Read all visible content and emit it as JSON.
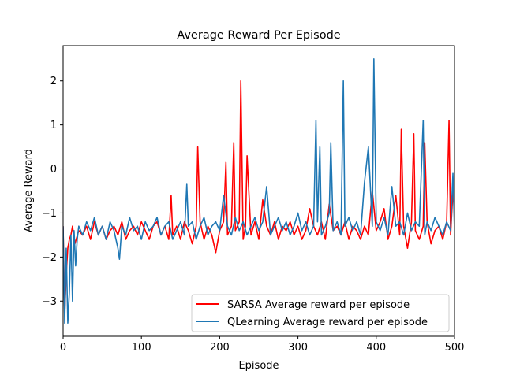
{
  "chart_data": {
    "type": "line",
    "title": "Average Reward Per Episode",
    "xlabel": "Episode",
    "ylabel": "Average Reward",
    "xlim": [
      0,
      500
    ],
    "ylim": [
      -3.8,
      2.8
    ],
    "xticks": [
      0,
      100,
      200,
      300,
      400,
      500
    ],
    "yticks": [
      -3,
      -2,
      -1,
      0,
      1,
      2
    ],
    "grid": false,
    "legend_position": "lower-right",
    "series": [
      {
        "name": "SARSA Average reward per episode",
        "color": "#ff0000",
        "x": [
          0,
          2,
          4,
          6,
          8,
          10,
          12,
          15,
          20,
          25,
          30,
          35,
          40,
          45,
          50,
          55,
          60,
          65,
          70,
          75,
          80,
          85,
          90,
          95,
          100,
          105,
          110,
          115,
          120,
          125,
          130,
          135,
          138,
          140,
          145,
          150,
          155,
          160,
          165,
          170,
          172,
          175,
          180,
          185,
          190,
          195,
          200,
          205,
          208,
          210,
          215,
          218,
          220,
          225,
          227,
          230,
          233,
          235,
          240,
          245,
          250,
          255,
          260,
          265,
          270,
          275,
          280,
          285,
          290,
          295,
          300,
          305,
          310,
          315,
          320,
          325,
          330,
          335,
          340,
          345,
          350,
          355,
          360,
          365,
          370,
          375,
          380,
          385,
          390,
          395,
          400,
          405,
          410,
          415,
          420,
          425,
          430,
          432,
          435,
          440,
          445,
          448,
          450,
          455,
          460,
          462,
          465,
          470,
          475,
          480,
          485,
          490,
          493,
          495,
          498,
          500
        ],
        "y": [
          -1.3,
          -3.3,
          -2.4,
          -1.8,
          -1.6,
          -1.5,
          -1.3,
          -1.7,
          -1.4,
          -1.5,
          -1.3,
          -1.6,
          -1.2,
          -1.5,
          -1.3,
          -1.6,
          -1.4,
          -1.3,
          -1.5,
          -1.2,
          -1.6,
          -1.4,
          -1.3,
          -1.5,
          -1.2,
          -1.4,
          -1.6,
          -1.3,
          -1.2,
          -1.5,
          -1.3,
          -1.6,
          -0.6,
          -1.5,
          -1.3,
          -1.6,
          -1.2,
          -1.4,
          -1.7,
          -1.3,
          0.5,
          -1.2,
          -1.6,
          -1.3,
          -1.5,
          -1.9,
          -1.4,
          -1.2,
          0.15,
          -1.5,
          -1.3,
          0.6,
          -1.4,
          -1.2,
          2.0,
          -1.6,
          -1.3,
          0.3,
          -1.5,
          -1.2,
          -1.6,
          -0.7,
          -1.3,
          -1.5,
          -1.2,
          -1.6,
          -1.3,
          -1.4,
          -1.2,
          -1.5,
          -1.3,
          -1.6,
          -1.4,
          -0.9,
          -1.3,
          -1.5,
          -1.2,
          -1.6,
          -0.8,
          -1.4,
          -1.3,
          -1.5,
          -1.2,
          -1.6,
          -1.3,
          -1.4,
          -1.6,
          -1.3,
          -1.5,
          -0.5,
          -1.4,
          -1.2,
          -0.9,
          -1.6,
          -1.3,
          -0.6,
          -1.5,
          0.9,
          -1.3,
          -1.8,
          -1.2,
          0.8,
          -1.4,
          -1.6,
          -1.3,
          0.6,
          -1.2,
          -1.7,
          -1.4,
          -1.3,
          -1.6,
          -1.2,
          1.1,
          -1.5,
          -0.5,
          -1.0
        ]
      },
      {
        "name": "QLearning Average reward per episode",
        "color": "#1f77b4",
        "x": [
          0,
          2,
          4,
          6,
          8,
          10,
          12,
          14,
          16,
          18,
          20,
          25,
          30,
          35,
          40,
          45,
          50,
          55,
          60,
          65,
          70,
          72,
          75,
          80,
          85,
          90,
          95,
          100,
          105,
          110,
          115,
          120,
          125,
          130,
          135,
          140,
          145,
          150,
          155,
          158,
          160,
          165,
          170,
          175,
          180,
          185,
          190,
          195,
          200,
          205,
          210,
          215,
          220,
          225,
          230,
          235,
          240,
          245,
          250,
          255,
          260,
          265,
          270,
          275,
          280,
          285,
          290,
          295,
          300,
          305,
          310,
          315,
          320,
          323,
          325,
          328,
          330,
          335,
          340,
          342,
          345,
          350,
          355,
          358,
          360,
          365,
          370,
          375,
          380,
          385,
          390,
          395,
          397,
          400,
          405,
          410,
          415,
          420,
          425,
          430,
          435,
          440,
          445,
          450,
          455,
          460,
          462,
          465,
          470,
          475,
          480,
          485,
          490,
          495,
          498,
          500
        ],
        "y": [
          -1.3,
          -3.5,
          -1.8,
          -3.5,
          -2.8,
          -1.5,
          -3.0,
          -1.4,
          -2.2,
          -1.6,
          -1.3,
          -1.5,
          -1.2,
          -1.4,
          -1.1,
          -1.5,
          -1.3,
          -1.6,
          -1.2,
          -1.4,
          -1.8,
          -2.05,
          -1.3,
          -1.5,
          -1.1,
          -1.4,
          -1.3,
          -1.6,
          -1.2,
          -1.4,
          -1.3,
          -1.1,
          -1.5,
          -1.3,
          -1.2,
          -1.6,
          -1.4,
          -1.2,
          -1.5,
          -0.35,
          -1.3,
          -1.2,
          -1.6,
          -1.3,
          -1.1,
          -1.5,
          -1.3,
          -1.2,
          -1.4,
          -0.6,
          -1.3,
          -1.5,
          -1.1,
          -1.4,
          -1.2,
          -1.5,
          -1.3,
          -1.1,
          -1.4,
          -1.2,
          -0.4,
          -1.5,
          -1.3,
          -1.1,
          -1.4,
          -1.2,
          -1.5,
          -1.3,
          -1.0,
          -1.4,
          -1.2,
          -1.5,
          -1.3,
          1.1,
          -1.2,
          0.5,
          -1.5,
          -1.3,
          -1.0,
          0.6,
          -1.4,
          -1.2,
          -1.5,
          2.0,
          -1.3,
          -1.1,
          -1.4,
          -1.2,
          -1.5,
          -0.3,
          0.5,
          -1.3,
          2.5,
          -1.2,
          -1.4,
          -1.1,
          -1.5,
          -0.4,
          -1.3,
          -1.2,
          -1.5,
          -1.0,
          -1.4,
          -1.2,
          -1.3,
          1.1,
          -1.5,
          -1.2,
          -1.4,
          -1.1,
          -1.3,
          -1.5,
          -1.2,
          -1.4,
          -0.1,
          -1.4
        ]
      }
    ]
  }
}
